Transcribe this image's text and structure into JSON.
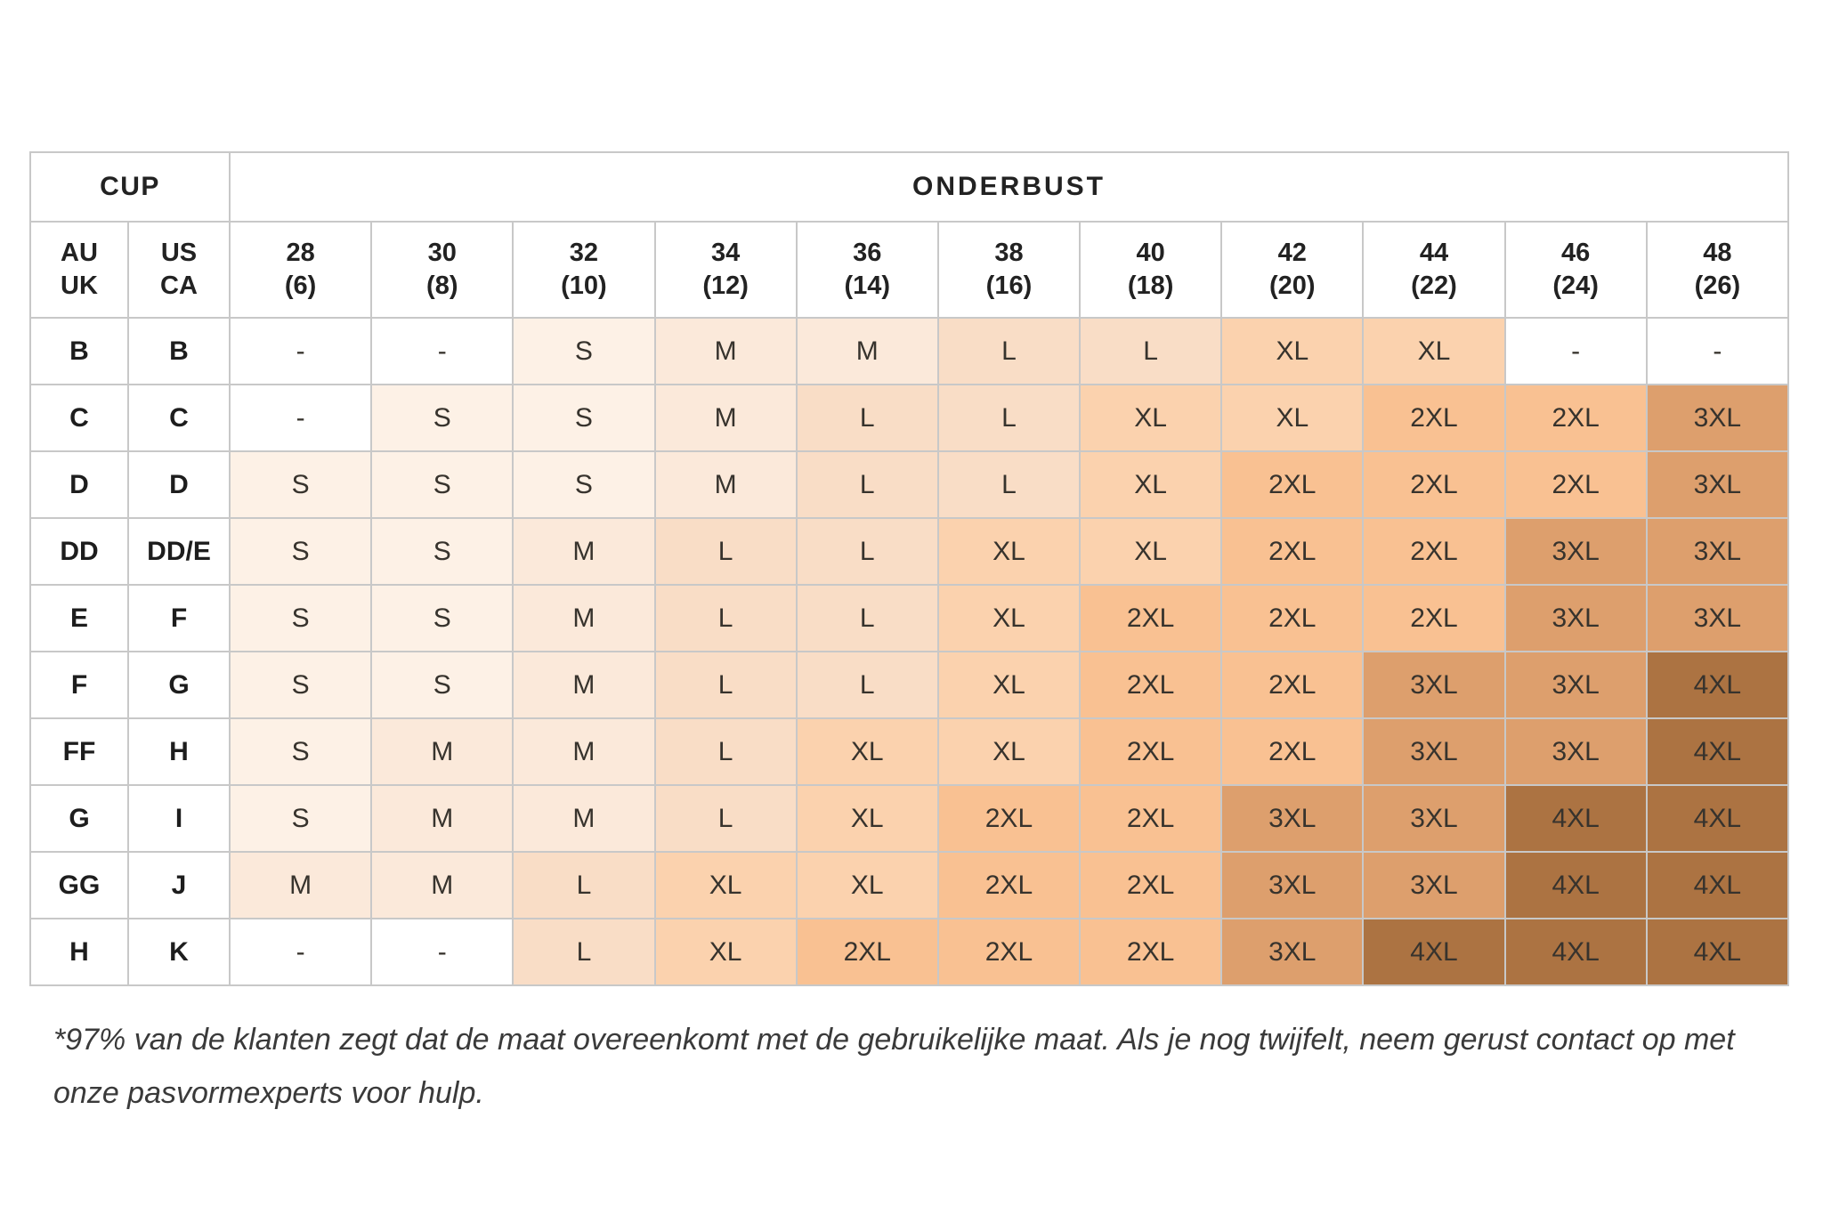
{
  "table": {
    "cup_group_label": "CUP",
    "band_group_label": "ONDERBUST",
    "cup_columns": [
      {
        "line1": "AU",
        "line2": "UK"
      },
      {
        "line1": "US",
        "line2": "CA"
      }
    ],
    "band_columns": [
      {
        "line1": "28",
        "line2": "(6)"
      },
      {
        "line1": "30",
        "line2": "(8)"
      },
      {
        "line1": "32",
        "line2": "(10)"
      },
      {
        "line1": "34",
        "line2": "(12)"
      },
      {
        "line1": "36",
        "line2": "(14)"
      },
      {
        "line1": "38",
        "line2": "(16)"
      },
      {
        "line1": "40",
        "line2": "(18)"
      },
      {
        "line1": "42",
        "line2": "(20)"
      },
      {
        "line1": "44",
        "line2": "(22)"
      },
      {
        "line1": "46",
        "line2": "(24)"
      },
      {
        "line1": "48",
        "line2": "(26)"
      }
    ],
    "rows": [
      {
        "au_uk": "B",
        "us_ca": "B",
        "cells": [
          "-",
          "-",
          "S",
          "M",
          "M",
          "L",
          "L",
          "XL",
          "XL",
          "-",
          "-"
        ]
      },
      {
        "au_uk": "C",
        "us_ca": "C",
        "cells": [
          "-",
          "S",
          "S",
          "M",
          "L",
          "L",
          "XL",
          "XL",
          "2XL",
          "2XL",
          "3XL"
        ]
      },
      {
        "au_uk": "D",
        "us_ca": "D",
        "cells": [
          "S",
          "S",
          "S",
          "M",
          "L",
          "L",
          "XL",
          "2XL",
          "2XL",
          "2XL",
          "3XL"
        ]
      },
      {
        "au_uk": "DD",
        "us_ca": "DD/E",
        "cells": [
          "S",
          "S",
          "M",
          "L",
          "L",
          "XL",
          "XL",
          "2XL",
          "2XL",
          "3XL",
          "3XL"
        ]
      },
      {
        "au_uk": "E",
        "us_ca": "F",
        "cells": [
          "S",
          "S",
          "M",
          "L",
          "L",
          "XL",
          "2XL",
          "2XL",
          "2XL",
          "3XL",
          "3XL"
        ]
      },
      {
        "au_uk": "F",
        "us_ca": "G",
        "cells": [
          "S",
          "S",
          "M",
          "L",
          "L",
          "XL",
          "2XL",
          "2XL",
          "3XL",
          "3XL",
          "4XL"
        ]
      },
      {
        "au_uk": "FF",
        "us_ca": "H",
        "cells": [
          "S",
          "M",
          "M",
          "L",
          "XL",
          "XL",
          "2XL",
          "2XL",
          "3XL",
          "3XL",
          "4XL"
        ]
      },
      {
        "au_uk": "G",
        "us_ca": "I",
        "cells": [
          "S",
          "M",
          "M",
          "L",
          "XL",
          "2XL",
          "2XL",
          "3XL",
          "3XL",
          "4XL",
          "4XL"
        ]
      },
      {
        "au_uk": "GG",
        "us_ca": "J",
        "cells": [
          "M",
          "M",
          "L",
          "XL",
          "XL",
          "2XL",
          "2XL",
          "3XL",
          "3XL",
          "4XL",
          "4XL"
        ]
      },
      {
        "au_uk": "H",
        "us_ca": "K",
        "cells": [
          "-",
          "-",
          "L",
          "XL",
          "2XL",
          "2XL",
          "2XL",
          "3XL",
          "4XL",
          "4XL",
          "4XL"
        ]
      }
    ]
  },
  "colors": {
    "size_fills": {
      "-": "#ffffff",
      "S": "#fdf1e6",
      "M": "#fbe9da",
      "L": "#f9ddc6",
      "XL": "#fbd2ae",
      "2XL": "#f9c192",
      "3XL": "#dd9f6d",
      "4XL": "#ac7342"
    },
    "grid_border": "#c8c8c8",
    "header_text": "#222222",
    "cell_text": "#37332d"
  },
  "footnote": "*97% van de klanten zegt dat de maat overeenkomt met de gebruikelijke maat. Als je nog twijfelt, neem gerust contact op met onze pasvormexperts voor hulp."
}
